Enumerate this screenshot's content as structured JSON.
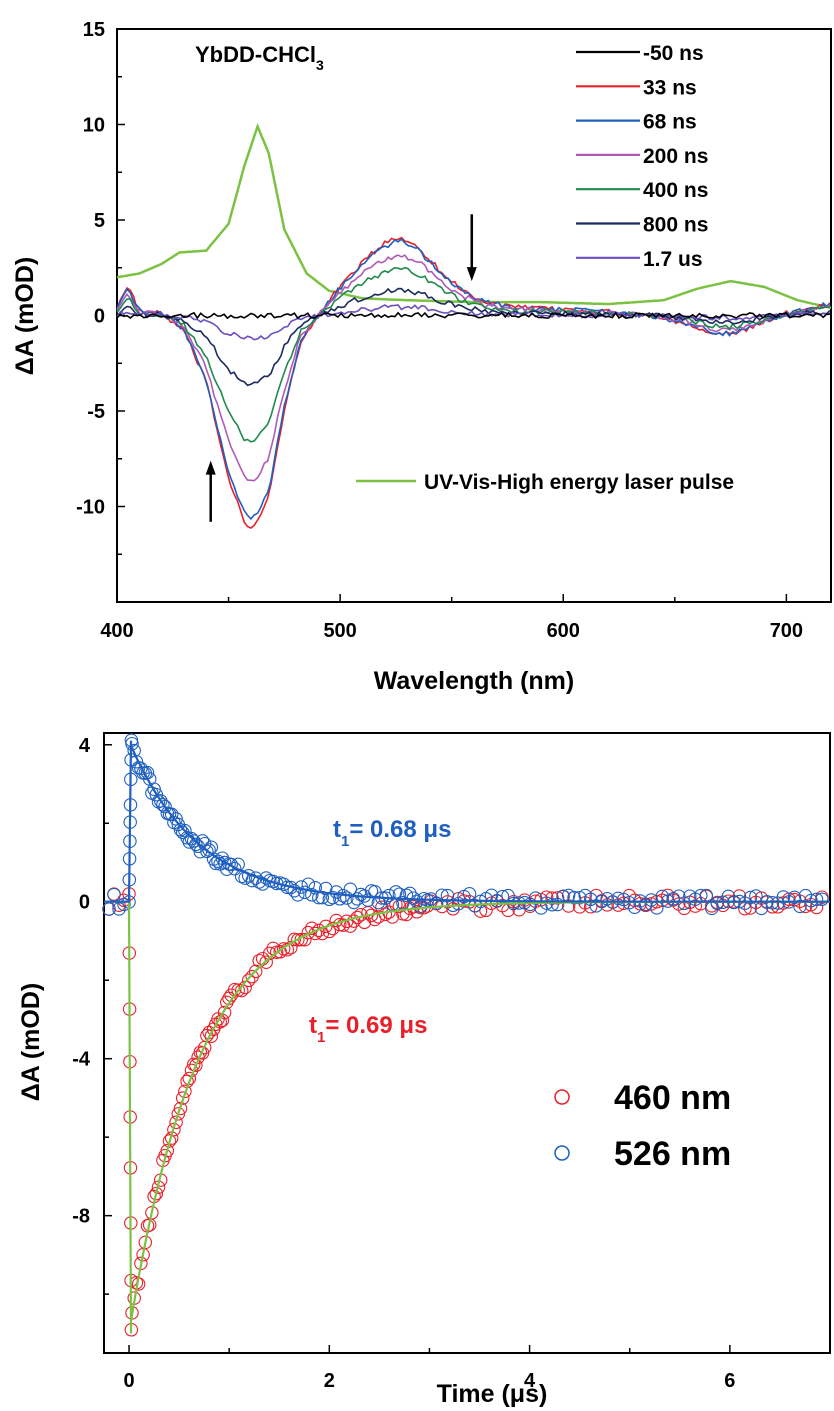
{
  "chart_data": [
    {
      "type": "line",
      "title": "YbDD-CHCl3",
      "title_main": "YbDD-CHCl",
      "title_sub": "3",
      "xlabel": "Wavelength (nm)",
      "ylabel": "ΔA (mOD)",
      "xlim": [
        400,
        720
      ],
      "ylim": [
        -15,
        15
      ],
      "xticks": [
        "400",
        "500",
        "600",
        "700"
      ],
      "yticks": [
        "15",
        "10",
        "5",
        "0",
        "-5",
        "-10"
      ],
      "legend_position": "top-right",
      "series": [
        {
          "name": "-50 ns",
          "color": "#000000",
          "scale": 0.0
        },
        {
          "name": "33 ns",
          "color": "#e8202a",
          "scale": 1.0
        },
        {
          "name": "68 ns",
          "color": "#1f5fbf",
          "scale": 0.96
        },
        {
          "name": "200 ns",
          "color": "#b05ab8",
          "scale": 0.78
        },
        {
          "name": "400 ns",
          "color": "#1f8a4c",
          "scale": 0.6
        },
        {
          "name": "800 ns",
          "color": "#1d2a5e",
          "scale": 0.33
        },
        {
          "name": "1.7 us",
          "color": "#6a4fc0",
          "scale": 0.11
        }
      ],
      "peak_points": [
        [
          400,
          0.5
        ],
        [
          405,
          1.5
        ],
        [
          410,
          0.2
        ],
        [
          420,
          0.1
        ],
        [
          430,
          -0.8
        ],
        [
          440,
          -3.5
        ],
        [
          450,
          -8.5
        ],
        [
          458,
          -11.0
        ],
        [
          462,
          -11.0
        ],
        [
          468,
          -9.5
        ],
        [
          475,
          -5.0
        ],
        [
          482,
          -1.5
        ],
        [
          490,
          0.0
        ],
        [
          500,
          1.5
        ],
        [
          510,
          2.8
        ],
        [
          520,
          3.8
        ],
        [
          527,
          4.1
        ],
        [
          535,
          3.6
        ],
        [
          545,
          2.3
        ],
        [
          555,
          1.3
        ],
        [
          565,
          0.7
        ],
        [
          580,
          0.4
        ],
        [
          600,
          0.3
        ],
        [
          620,
          0.2
        ],
        [
          640,
          0.0
        ],
        [
          655,
          -0.4
        ],
        [
          668,
          -0.9
        ],
        [
          675,
          -1.0
        ],
        [
          685,
          -0.6
        ],
        [
          700,
          0.1
        ],
        [
          710,
          0.4
        ],
        [
          720,
          0.6
        ]
      ],
      "reference_series": {
        "name": "UV-Vis-High energy laser pulse",
        "color": "#7cc242",
        "points": [
          [
            400,
            2.0
          ],
          [
            410,
            2.2
          ],
          [
            420,
            2.7
          ],
          [
            428,
            3.3
          ],
          [
            440,
            3.4
          ],
          [
            450,
            4.8
          ],
          [
            457,
            7.8
          ],
          [
            463,
            9.9
          ],
          [
            468,
            8.5
          ],
          [
            475,
            4.5
          ],
          [
            485,
            2.2
          ],
          [
            495,
            1.3
          ],
          [
            510,
            0.9
          ],
          [
            530,
            0.8
          ],
          [
            560,
            0.7
          ],
          [
            590,
            0.7
          ],
          [
            620,
            0.6
          ],
          [
            645,
            0.8
          ],
          [
            660,
            1.4
          ],
          [
            675,
            1.8
          ],
          [
            690,
            1.5
          ],
          [
            705,
            0.8
          ],
          [
            720,
            0.4
          ]
        ]
      },
      "arrows": [
        {
          "x": 559,
          "from": 5.3,
          "to": 1.8
        },
        {
          "x": 442,
          "from": -10.8,
          "to": -7.6
        }
      ]
    },
    {
      "type": "scatter",
      "xlabel": "Time (μs)",
      "ylabel": "ΔA (mOD)",
      "xlim": [
        -0.25,
        7.0
      ],
      "ylim": [
        -11.5,
        4.3
      ],
      "xticks": [
        "0",
        "2",
        "4",
        "6"
      ],
      "yticks": [
        "4",
        "0",
        "-4",
        "-8"
      ],
      "series": [
        {
          "name": "460 nm",
          "color": "#e8202a",
          "amplitude": -11.0,
          "tau": 0.69,
          "fit_color": "#7cc242"
        },
        {
          "name": "526 nm",
          "color": "#1f5fbf",
          "amplitude": 4.1,
          "tau": 0.68,
          "fit_color": "#1f5fbf"
        }
      ],
      "annotations": [
        {
          "main": "t",
          "sub": "1",
          "value": "= 0.68 μs",
          "color": "#1f5fbf"
        },
        {
          "main": "t",
          "sub": "1",
          "value": "= 0.69 μs",
          "color": "#e8202a"
        }
      ]
    }
  ]
}
